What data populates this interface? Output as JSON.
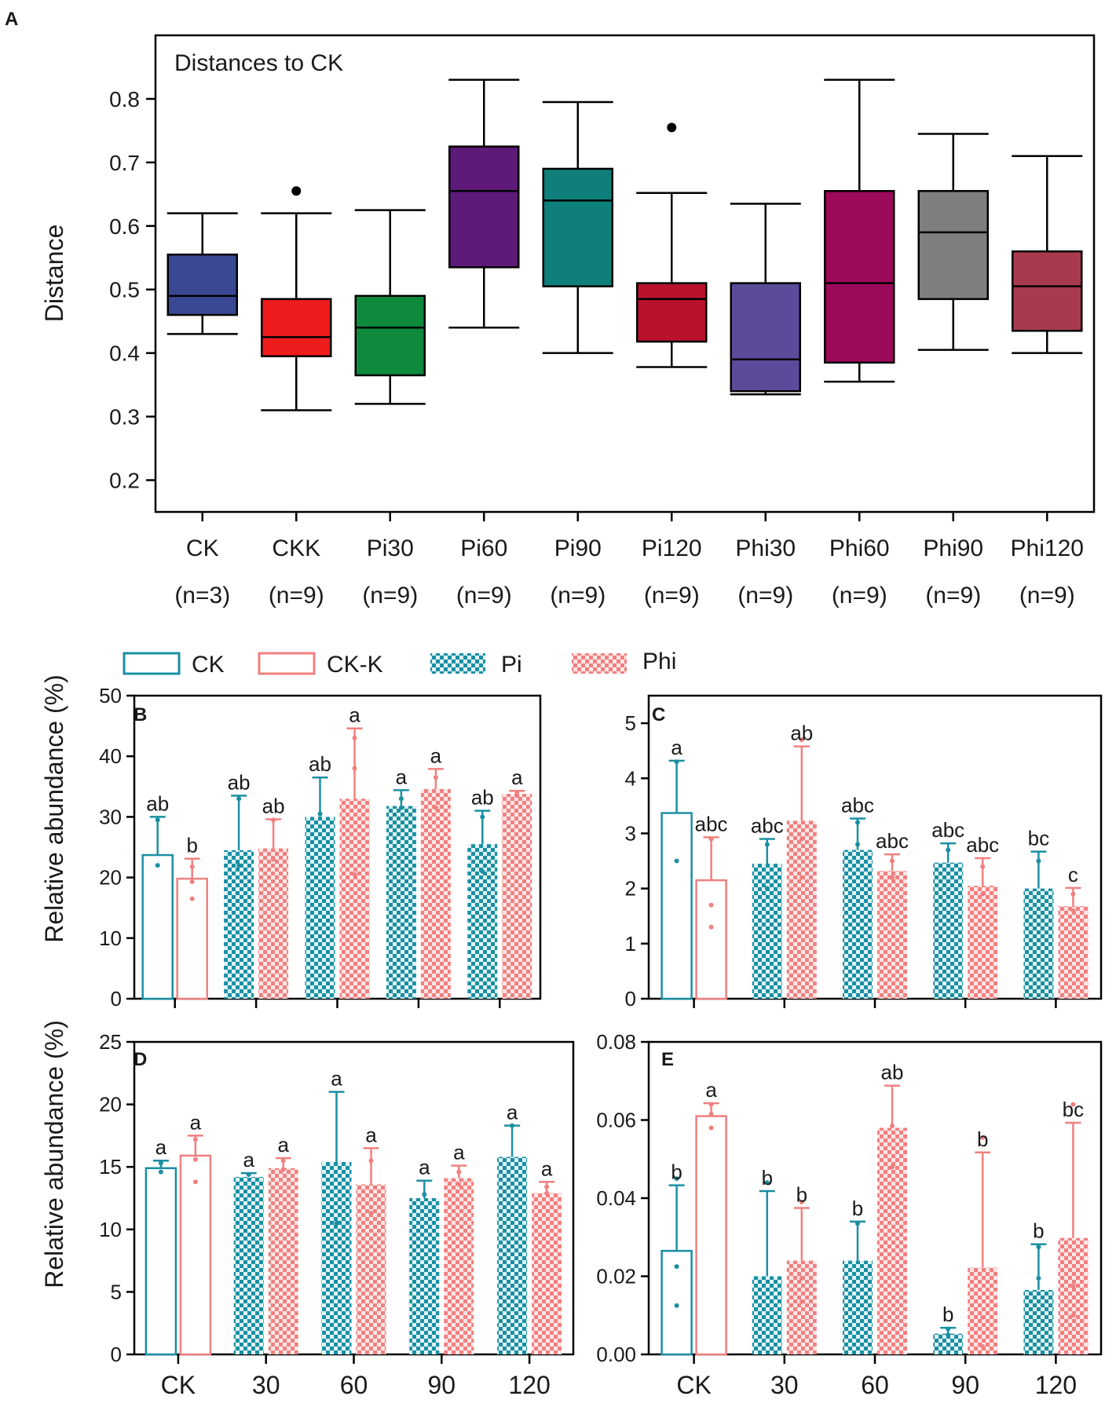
{
  "colors": {
    "ck": "#1a8fa3",
    "ckk": "#f08080",
    "pi": "#1a8fa3",
    "phi": "#f08080",
    "axis": "#000000"
  },
  "chart_data": [
    {
      "panel": "A",
      "type": "box",
      "title": "Distances to CK",
      "ylabel": "Distance",
      "ylim": [
        0.15,
        0.9
      ],
      "yticks": [
        0.2,
        0.3,
        0.4,
        0.5,
        0.6,
        0.7,
        0.8
      ],
      "tick_labels": [
        "0.2",
        "0.3",
        "0.4",
        "0.5",
        "0.6",
        "0.7",
        "0.8"
      ],
      "groups": [
        {
          "name": "CK",
          "n": "(n=3)",
          "color": "#3a4894",
          "min": 0.43,
          "q1": 0.46,
          "median": 0.49,
          "q3": 0.555,
          "max": 0.62,
          "outliers": []
        },
        {
          "name": "CKK",
          "n": "(n=9)",
          "color": "#ee1c1c",
          "min": 0.31,
          "q1": 0.395,
          "median": 0.425,
          "q3": 0.485,
          "max": 0.62,
          "outliers": [
            0.655
          ]
        },
        {
          "name": "Pi30",
          "n": "(n=9)",
          "color": "#0f8a3c",
          "min": 0.32,
          "q1": 0.365,
          "median": 0.44,
          "q3": 0.49,
          "max": 0.625,
          "outliers": []
        },
        {
          "name": "Pi60",
          "n": "(n=9)",
          "color": "#5d1a78",
          "min": 0.44,
          "q1": 0.535,
          "median": 0.655,
          "q3": 0.725,
          "max": 0.83,
          "outliers": []
        },
        {
          "name": "Pi90",
          "n": "(n=9)",
          "color": "#0e7f7a",
          "min": 0.4,
          "q1": 0.505,
          "median": 0.64,
          "q3": 0.69,
          "max": 0.795,
          "outliers": []
        },
        {
          "name": "Pi120",
          "n": "(n=9)",
          "color": "#b8122c",
          "min": 0.378,
          "q1": 0.418,
          "median": 0.485,
          "q3": 0.51,
          "max": 0.652,
          "outliers": [
            0.755
          ]
        },
        {
          "name": "Phi30",
          "n": "(n=9)",
          "color": "#5b4b9a",
          "min": 0.335,
          "q1": 0.34,
          "median": 0.39,
          "q3": 0.51,
          "max": 0.635,
          "outliers": []
        },
        {
          "name": "Phi60",
          "n": "(n=9)",
          "color": "#9c0a5a",
          "min": 0.355,
          "q1": 0.385,
          "median": 0.51,
          "q3": 0.655,
          "max": 0.83,
          "outliers": []
        },
        {
          "name": "Phi90",
          "n": "(n=9)",
          "color": "#7f7f7f",
          "min": 0.405,
          "q1": 0.485,
          "median": 0.59,
          "q3": 0.655,
          "max": 0.745,
          "outliers": []
        },
        {
          "name": "Phi120",
          "n": "(n=9)",
          "color": "#a83a50",
          "min": 0.4,
          "q1": 0.435,
          "median": 0.505,
          "q3": 0.56,
          "max": 0.71,
          "outliers": []
        }
      ]
    },
    {
      "panel": "B",
      "type": "bar",
      "ylabel": "Relative abundance (%)",
      "ylim": [
        0,
        50
      ],
      "yticks": [
        0,
        10,
        20,
        30,
        40,
        50
      ],
      "tick_labels": [
        "0",
        "10",
        "20",
        "30",
        "40",
        "50"
      ],
      "categories": [
        "CK",
        "30",
        "60",
        "90",
        "120"
      ],
      "bars": [
        {
          "cat": 0,
          "side": "left",
          "kind": "CK",
          "value": 23.7,
          "err": 6.3,
          "label": "ab",
          "points": [
            29.5,
            22
          ]
        },
        {
          "cat": 0,
          "side": "right",
          "kind": "CK-K",
          "value": 19.8,
          "err": 3.3,
          "label": "b",
          "points": [
            21.8,
            19.3,
            16.5
          ]
        },
        {
          "cat": 1,
          "side": "left",
          "kind": "Pi",
          "value": 24.5,
          "err": 9.0,
          "label": "ab",
          "points": [
            33,
            22
          ]
        },
        {
          "cat": 1,
          "side": "right",
          "kind": "Phi",
          "value": 24.8,
          "err": 4.8,
          "label": "ab",
          "points": [
            29.5,
            23
          ]
        },
        {
          "cat": 2,
          "side": "left",
          "kind": "Pi",
          "value": 30.0,
          "err": 6.5,
          "label": "ab",
          "points": [
            30.5
          ]
        },
        {
          "cat": 2,
          "side": "right",
          "kind": "Phi",
          "value": 33.0,
          "err": 11.6,
          "label": "a",
          "points": [
            43,
            38,
            20.5
          ]
        },
        {
          "cat": 3,
          "side": "left",
          "kind": "Pi",
          "value": 31.8,
          "err": 2.6,
          "label": "a",
          "points": [
            33,
            31.5
          ]
        },
        {
          "cat": 3,
          "side": "right",
          "kind": "Phi",
          "value": 34.6,
          "err": 3.3,
          "label": "a",
          "points": [
            36.5,
            31.5
          ]
        },
        {
          "cat": 4,
          "side": "left",
          "kind": "Pi",
          "value": 25.5,
          "err": 5.5,
          "label": "ab",
          "points": [
            30,
            21
          ]
        },
        {
          "cat": 4,
          "side": "right",
          "kind": "Phi",
          "value": 33.8,
          "err": 0.5,
          "label": "a",
          "points": [
            34,
            33.5
          ]
        }
      ]
    },
    {
      "panel": "C",
      "type": "bar",
      "ylim": [
        0,
        5.5
      ],
      "yticks": [
        0,
        1,
        2,
        3,
        4,
        5
      ],
      "tick_labels": [
        "0",
        "1",
        "2",
        "3",
        "4",
        "5"
      ],
      "categories": [
        "CK",
        "30",
        "60",
        "90",
        "120"
      ],
      "bars": [
        {
          "cat": 0,
          "side": "left",
          "kind": "CK",
          "value": 3.37,
          "err": 0.95,
          "label": "a",
          "points": [
            4.3,
            2.5
          ]
        },
        {
          "cat": 0,
          "side": "right",
          "kind": "CK-K",
          "value": 2.15,
          "err": 0.78,
          "label": "abc",
          "points": [
            2.9,
            1.7,
            1.3
          ]
        },
        {
          "cat": 1,
          "side": "left",
          "kind": "Pi",
          "value": 2.45,
          "err": 0.45,
          "label": "abc",
          "points": [
            2.8,
            2.0
          ]
        },
        {
          "cat": 1,
          "side": "right",
          "kind": "Phi",
          "value": 3.23,
          "err": 1.35,
          "label": "ab",
          "points": [
            4.7,
            2.9,
            2.2
          ]
        },
        {
          "cat": 2,
          "side": "left",
          "kind": "Pi",
          "value": 2.7,
          "err": 0.57,
          "label": "abc",
          "points": [
            3.2,
            2.8
          ]
        },
        {
          "cat": 2,
          "side": "right",
          "kind": "Phi",
          "value": 2.32,
          "err": 0.3,
          "label": "abc",
          "points": [
            2.5,
            2.2
          ]
        },
        {
          "cat": 3,
          "side": "left",
          "kind": "Pi",
          "value": 2.47,
          "err": 0.35,
          "label": "abc",
          "points": [
            2.7
          ]
        },
        {
          "cat": 3,
          "side": "right",
          "kind": "Phi",
          "value": 2.05,
          "err": 0.5,
          "label": "abc",
          "points": [
            2.4,
            1.9
          ]
        },
        {
          "cat": 4,
          "side": "left",
          "kind": "Pi",
          "value": 2.0,
          "err": 0.67,
          "label": "bc",
          "points": [
            2.5
          ]
        },
        {
          "cat": 4,
          "side": "right",
          "kind": "Phi",
          "value": 1.68,
          "err": 0.33,
          "label": "c",
          "points": [
            1.9,
            1.6
          ]
        }
      ]
    },
    {
      "panel": "D",
      "type": "bar",
      "ylabel": "Relative abundance (%)",
      "ylim": [
        0,
        25
      ],
      "yticks": [
        0,
        5,
        10,
        15,
        20,
        25
      ],
      "tick_labels": [
        "0",
        "5",
        "10",
        "15",
        "20",
        "25"
      ],
      "categories": [
        "CK",
        "30",
        "60",
        "90",
        "120"
      ],
      "xtick_labels": [
        "CK",
        "30",
        "60",
        "90",
        "120"
      ],
      "bars": [
        {
          "cat": 0,
          "side": "left",
          "kind": "CK",
          "value": 14.9,
          "err": 0.6,
          "label": "a",
          "points": [
            15.3,
            14.6
          ]
        },
        {
          "cat": 0,
          "side": "right",
          "kind": "CK-K",
          "value": 15.9,
          "err": 1.6,
          "label": "a",
          "points": [
            17.2,
            15.6,
            13.8
          ]
        },
        {
          "cat": 1,
          "side": "left",
          "kind": "Pi",
          "value": 14.2,
          "err": 0.3,
          "label": "a",
          "points": [
            14.4
          ]
        },
        {
          "cat": 1,
          "side": "right",
          "kind": "Phi",
          "value": 14.9,
          "err": 0.8,
          "label": "a",
          "points": [
            15.5,
            14.8
          ]
        },
        {
          "cat": 2,
          "side": "left",
          "kind": "Pi",
          "value": 15.4,
          "err": 5.6,
          "label": "a",
          "points": [
            10.5
          ]
        },
        {
          "cat": 2,
          "side": "right",
          "kind": "Phi",
          "value": 13.6,
          "err": 2.9,
          "label": "a",
          "points": [
            15.5,
            11.3
          ]
        },
        {
          "cat": 3,
          "side": "left",
          "kind": "Pi",
          "value": 12.5,
          "err": 1.4,
          "label": "a",
          "points": [
            12.8
          ]
        },
        {
          "cat": 3,
          "side": "right",
          "kind": "Phi",
          "value": 14.1,
          "err": 1.0,
          "label": "a",
          "points": [
            14.6,
            13.6
          ]
        },
        {
          "cat": 4,
          "side": "left",
          "kind": "Pi",
          "value": 15.8,
          "err": 2.5,
          "label": "a",
          "points": [
            18.3
          ]
        },
        {
          "cat": 4,
          "side": "right",
          "kind": "Phi",
          "value": 12.9,
          "err": 0.9,
          "label": "a",
          "points": [
            13.4,
            12.9
          ]
        }
      ]
    },
    {
      "panel": "E",
      "type": "bar",
      "ylim": [
        0,
        0.08
      ],
      "yticks": [
        0,
        0.02,
        0.04,
        0.06,
        0.08
      ],
      "tick_labels": [
        "0.00",
        "0.02",
        "0.04",
        "0.06",
        "0.08"
      ],
      "categories": [
        "CK",
        "30",
        "60",
        "90",
        "120"
      ],
      "xtick_labels": [
        "CK",
        "30",
        "60",
        "90",
        "120"
      ],
      "bars": [
        {
          "cat": 0,
          "side": "left",
          "kind": "CK",
          "value": 0.0265,
          "err": 0.0168,
          "label": "b",
          "points": [
            0.045,
            0.0225,
            0.0125
          ]
        },
        {
          "cat": 0,
          "side": "right",
          "kind": "CK-K",
          "value": 0.061,
          "err": 0.0033,
          "label": "a",
          "points": [
            0.064,
            0.0615,
            0.058
          ]
        },
        {
          "cat": 1,
          "side": "left",
          "kind": "Pi",
          "value": 0.02,
          "err": 0.0218,
          "label": "b",
          "points": [
            0.044
          ]
        },
        {
          "cat": 1,
          "side": "right",
          "kind": "Phi",
          "value": 0.024,
          "err": 0.0135,
          "label": "b",
          "points": [
            0.039,
            0.0195,
            0.0135
          ]
        },
        {
          "cat": 2,
          "side": "left",
          "kind": "Pi",
          "value": 0.024,
          "err": 0.01,
          "label": "b",
          "points": [
            0.0335
          ]
        },
        {
          "cat": 2,
          "side": "right",
          "kind": "Phi",
          "value": 0.058,
          "err": 0.0108,
          "label": "ab",
          "points": [
            0.0585,
            0.048
          ]
        },
        {
          "cat": 3,
          "side": "left",
          "kind": "Pi",
          "value": 0.0053,
          "err": 0.0015,
          "label": "b",
          "points": [
            0.0065,
            0.005
          ]
        },
        {
          "cat": 3,
          "side": "right",
          "kind": "Phi",
          "value": 0.0222,
          "err": 0.0295,
          "label": "b",
          "points": [
            0.0555,
            0.0095,
            0.002
          ]
        },
        {
          "cat": 4,
          "side": "left",
          "kind": "Pi",
          "value": 0.0165,
          "err": 0.0117,
          "label": "b",
          "points": [
            0.0275,
            0.0195
          ]
        },
        {
          "cat": 4,
          "side": "right",
          "kind": "Phi",
          "value": 0.0298,
          "err": 0.0295,
          "label": "bc",
          "points": [
            0.064,
            0.0175,
            0.01
          ]
        }
      ]
    }
  ],
  "panel_letters": {
    "a": "A",
    "b": "B",
    "c": "C",
    "d": "D",
    "e": "E"
  },
  "legend": [
    {
      "label": "CK",
      "style": "outline",
      "color": "#1a8fa3"
    },
    {
      "label": "CK-K",
      "style": "outline",
      "color": "#f08080"
    },
    {
      "label": "Pi",
      "style": "checker",
      "color": "#1a8fa3"
    },
    {
      "label": "Phi",
      "style": "checker",
      "color": "#f08080"
    }
  ]
}
